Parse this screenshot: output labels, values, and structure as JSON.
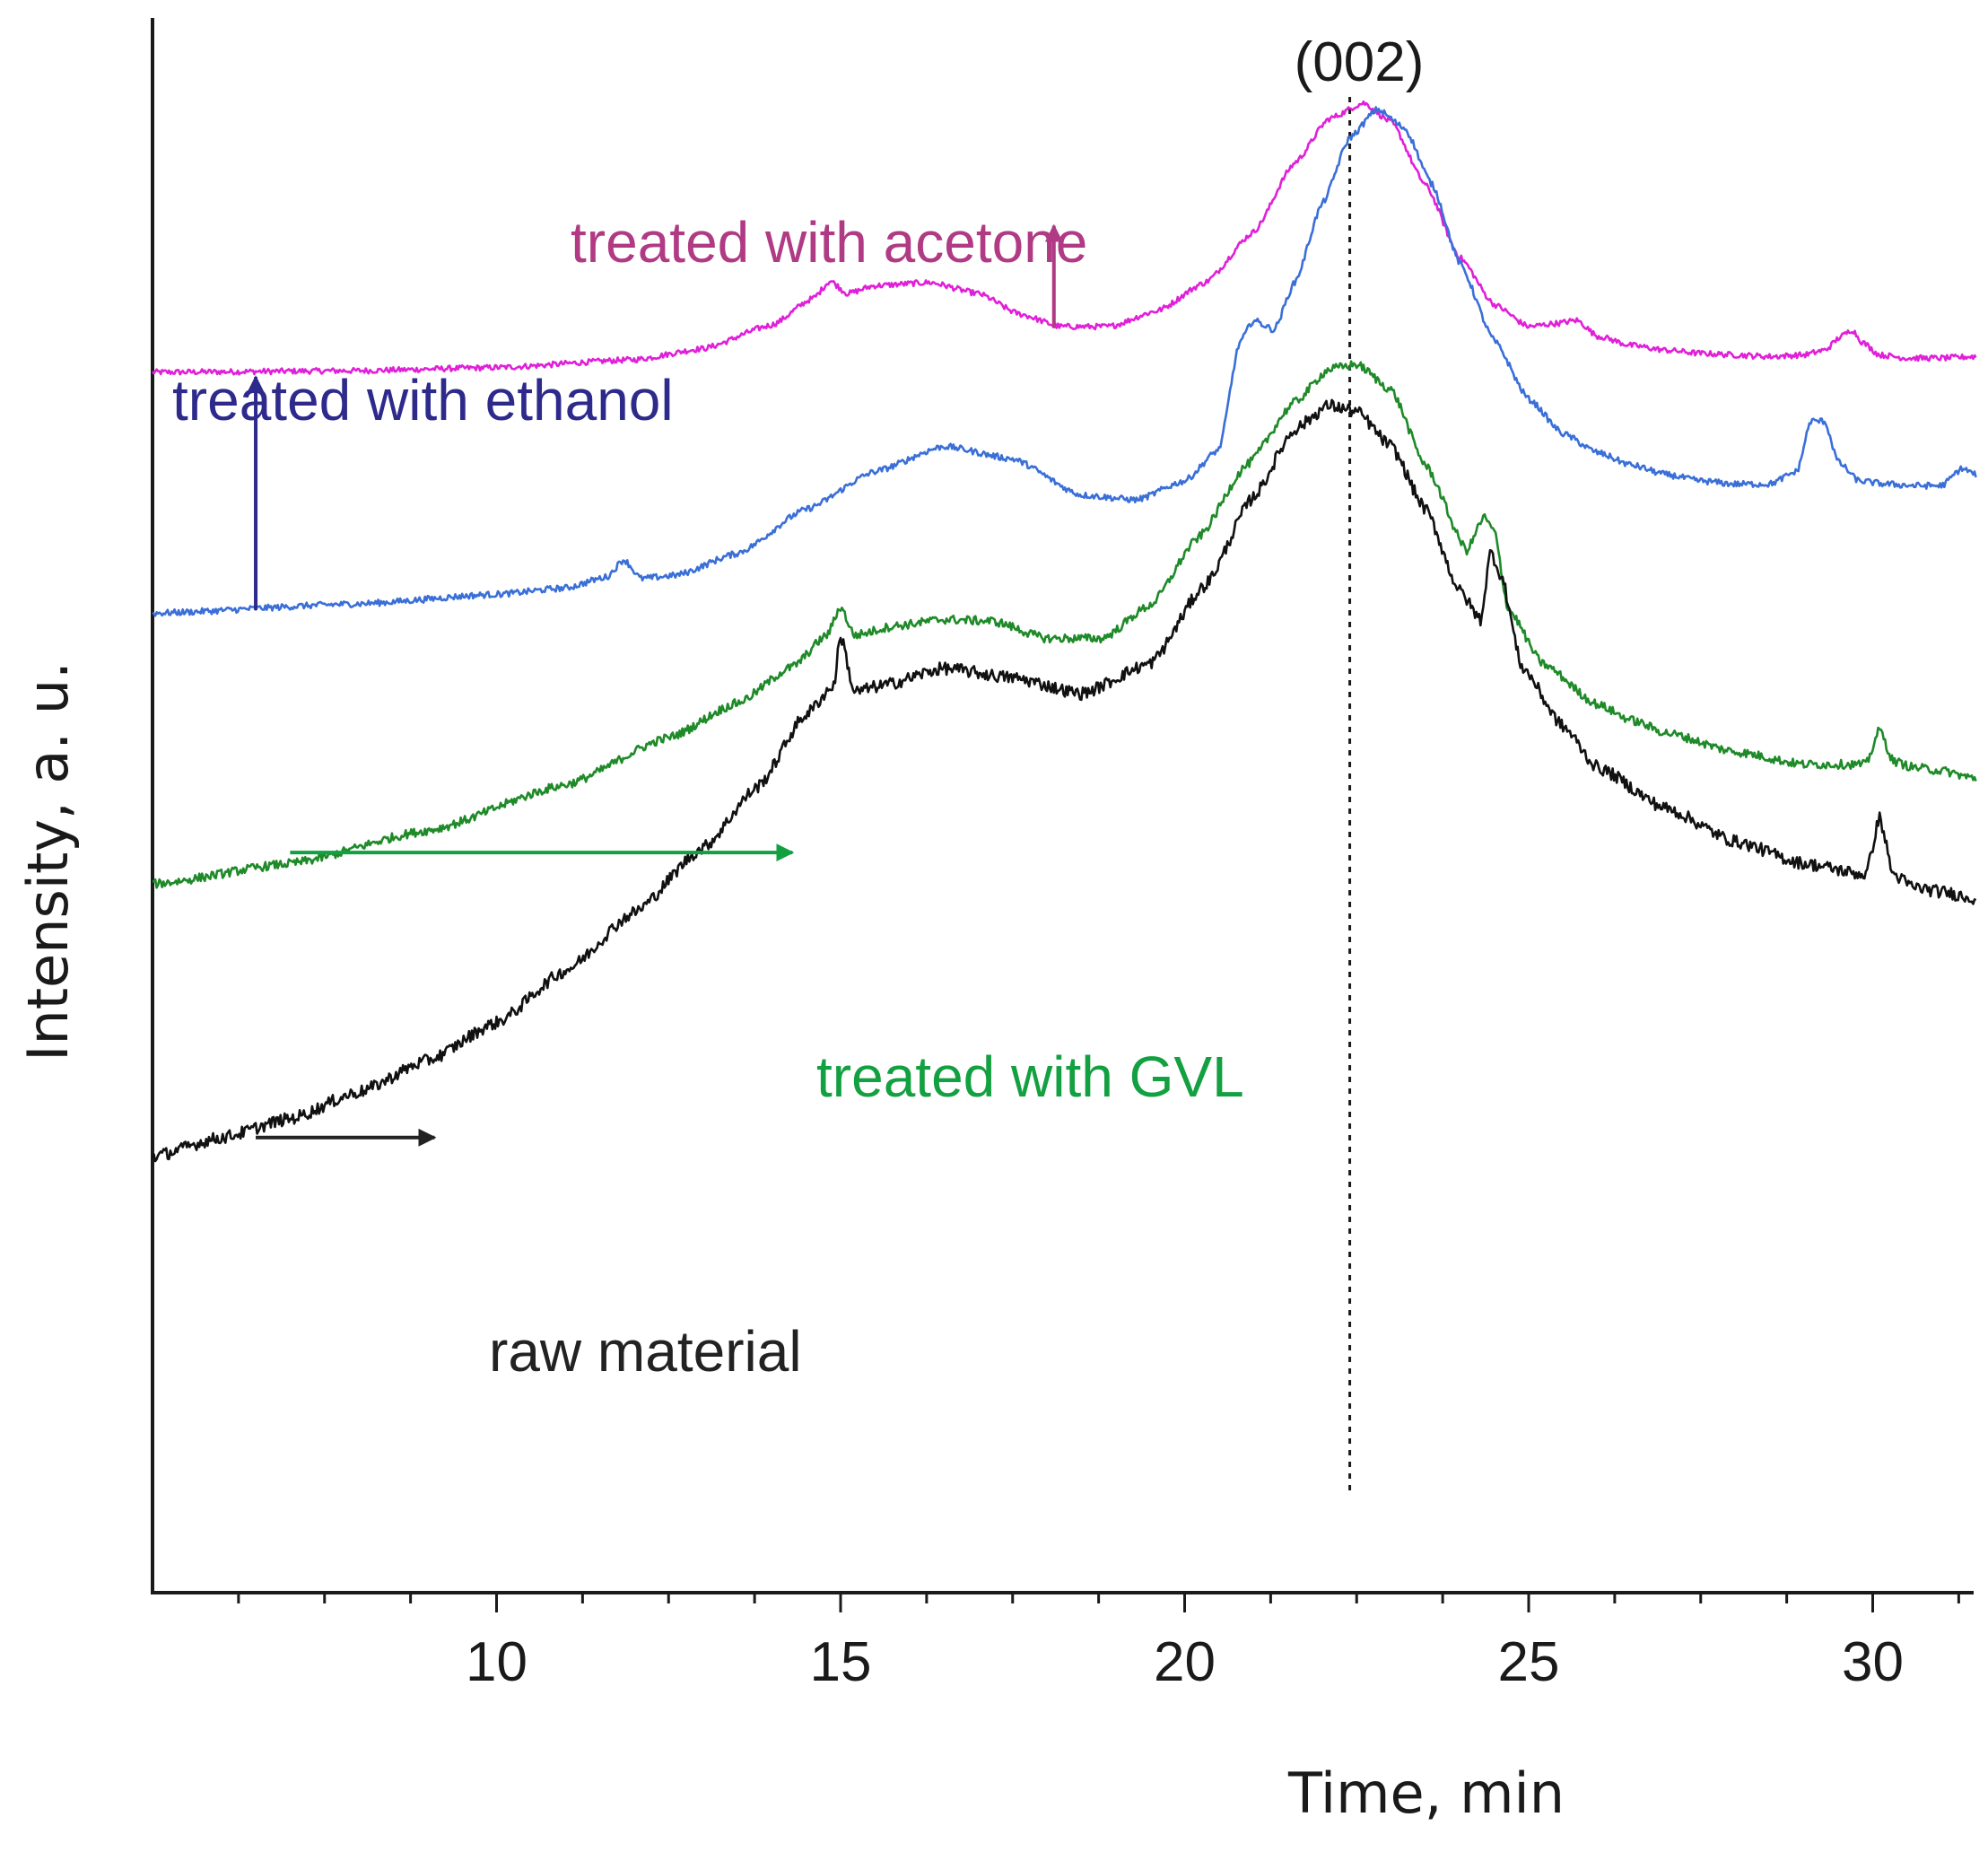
{
  "chart_data": {
    "type": "line",
    "title": "",
    "xlabel": "Time, min",
    "ylabel": "Intensity, a. u.",
    "xlim": [
      5,
      31.5
    ],
    "ylim": [
      0,
      100
    ],
    "x_ticks": [
      10,
      15,
      20,
      25,
      30
    ],
    "x_tick_labels": [
      "10",
      "15",
      "20",
      "25",
      "30"
    ],
    "minor_tick_step": 1.25,
    "y_ticks_shown": false,
    "reference_line": {
      "x": 22.4,
      "label": "(002)",
      "style": "dotted"
    },
    "series": [
      {
        "name": "treated with acetone",
        "color": "#e020d8",
        "label_color": "#b03a84",
        "x": [
          5,
          8,
          10,
          12,
          13,
          14,
          14.6,
          14.85,
          15.1,
          15.5,
          16.3,
          17,
          17.6,
          18.2,
          18.9,
          19.6,
          20.3,
          21,
          21.6,
          22.1,
          22.6,
          23,
          23.5,
          24,
          24.5,
          25,
          25.4,
          25.7,
          26,
          26.5,
          27,
          27.5,
          28,
          28.5,
          29,
          29.3,
          29.55,
          29.7,
          29.85,
          30.1,
          30.5,
          31,
          31.5
        ],
        "values": [
          77.5,
          77.6,
          77.8,
          78.3,
          79.0,
          80.5,
          82.2,
          83.3,
          82.5,
          83.0,
          83.2,
          82.5,
          81.2,
          80.4,
          80.4,
          81.4,
          83.2,
          86.4,
          90.8,
          93.6,
          94.6,
          93.4,
          89.4,
          84.8,
          81.8,
          80.4,
          80.6,
          80.8,
          79.8,
          79.2,
          78.9,
          78.7,
          78.6,
          78.5,
          78.6,
          78.9,
          79.8,
          80.2,
          79.4,
          78.6,
          78.4,
          78.4,
          78.5
        ]
      },
      {
        "name": "treated with ethanol",
        "color": "#3a6fd8",
        "label_color": "#2e2a8c",
        "x": [
          5,
          8,
          10,
          11,
          11.6,
          11.85,
          12.1,
          12.6,
          13.5,
          14.5,
          15.5,
          16.5,
          17.5,
          18.5,
          19.3,
          20,
          20.5,
          20.8,
          21,
          21.3,
          21.6,
          22,
          22.4,
          22.8,
          23.2,
          23.6,
          24,
          24.5,
          25,
          25.5,
          26,
          26.5,
          27,
          27.5,
          28,
          28.5,
          28.9,
          29.1,
          29.3,
          29.5,
          29.8,
          30.2,
          30.6,
          31,
          31.3,
          31.5
        ],
        "values": [
          62.2,
          62.8,
          63.4,
          63.8,
          64.5,
          65.6,
          64.4,
          64.6,
          66.0,
          68.8,
          71.2,
          72.8,
          72.0,
          69.7,
          69.4,
          70.6,
          72.6,
          79.4,
          80.8,
          80.2,
          83.2,
          88.2,
          92.4,
          94.2,
          93.0,
          89.4,
          84.4,
          79.5,
          75.8,
          73.6,
          72.4,
          71.6,
          71.0,
          70.6,
          70.4,
          70.4,
          71.2,
          74.4,
          74.4,
          71.8,
          70.6,
          70.4,
          70.3,
          70.3,
          71.4,
          71.0
        ]
      },
      {
        "name": "treated with GVL",
        "color": "#1e8a28",
        "label_color": "#12a040",
        "x": [
          5,
          7,
          9,
          11,
          12.5,
          13.5,
          14.3,
          14.8,
          15,
          15.2,
          15.8,
          16.5,
          17.2,
          18,
          18.8,
          19.5,
          20.2,
          20.9,
          21.6,
          22.1,
          22.5,
          23,
          23.5,
          24.1,
          24.35,
          24.5,
          24.7,
          25.2,
          26,
          26.5,
          27,
          28,
          29,
          29.9,
          30.1,
          30.3,
          30.6,
          31,
          31.5
        ],
        "values": [
          45.0,
          46.3,
          48.4,
          51.3,
          54.3,
          56.5,
          58.8,
          60.8,
          62.6,
          60.8,
          61.4,
          61.8,
          61.7,
          60.6,
          60.6,
          62.7,
          67.0,
          71.6,
          75.6,
          77.7,
          78.0,
          76.4,
          71.6,
          66.2,
          68.3,
          67.4,
          62.5,
          59.0,
          56.4,
          55.4,
          54.6,
          53.4,
          52.6,
          52.6,
          54.8,
          52.8,
          52.4,
          52.2,
          51.7
        ]
      },
      {
        "name": "raw material",
        "color": "#111111",
        "label_color": "#222222",
        "x": [
          5,
          6,
          7,
          8,
          9,
          10,
          11,
          12,
          13,
          13.8,
          14.5,
          14.9,
          15,
          15.2,
          15.6,
          16.5,
          17.5,
          18.5,
          19.5,
          20.3,
          21,
          21.6,
          22.1,
          22.5,
          23,
          23.5,
          24,
          24.3,
          24.45,
          24.6,
          24.9,
          25.5,
          26,
          27,
          28,
          29,
          29.9,
          30.1,
          30.3,
          30.6,
          31,
          31.5
        ],
        "values": [
          27.7,
          28.9,
          30.1,
          31.8,
          33.8,
          36.2,
          39.5,
          43.2,
          47.3,
          51.2,
          55.8,
          57.6,
          60.8,
          57.2,
          57.6,
          58.7,
          58.1,
          57.1,
          59.0,
          64.0,
          69.6,
          73.9,
          75.4,
          75.0,
          72.8,
          68.8,
          63.6,
          61.8,
          66.1,
          64.6,
          58.8,
          55.0,
          52.4,
          49.8,
          47.7,
          46.3,
          45.6,
          49.2,
          45.6,
          44.8,
          44.5,
          44.1
        ]
      }
    ],
    "annotations": [
      {
        "text": "treated with acetone",
        "color": "#b03a84",
        "arrow": "up",
        "arrow_x": 18.1,
        "arrow_from": 80.3,
        "arrow_to": 86.8
      },
      {
        "text": "treated with ethanol",
        "color": "#2e2a8c",
        "arrow": "up",
        "arrow_x": 6.5,
        "arrow_from": 62.4,
        "arrow_to": 77.2
      },
      {
        "text": "treated with GVL",
        "color": "#12a040",
        "arrow": "right",
        "arrow_y": 47.0,
        "arrow_from": 7.0,
        "arrow_to": 14.3
      },
      {
        "text": "raw material",
        "color": "#222222",
        "arrow": "right",
        "arrow_y": 28.9,
        "arrow_from": 6.5,
        "arrow_to": 9.1
      }
    ]
  }
}
